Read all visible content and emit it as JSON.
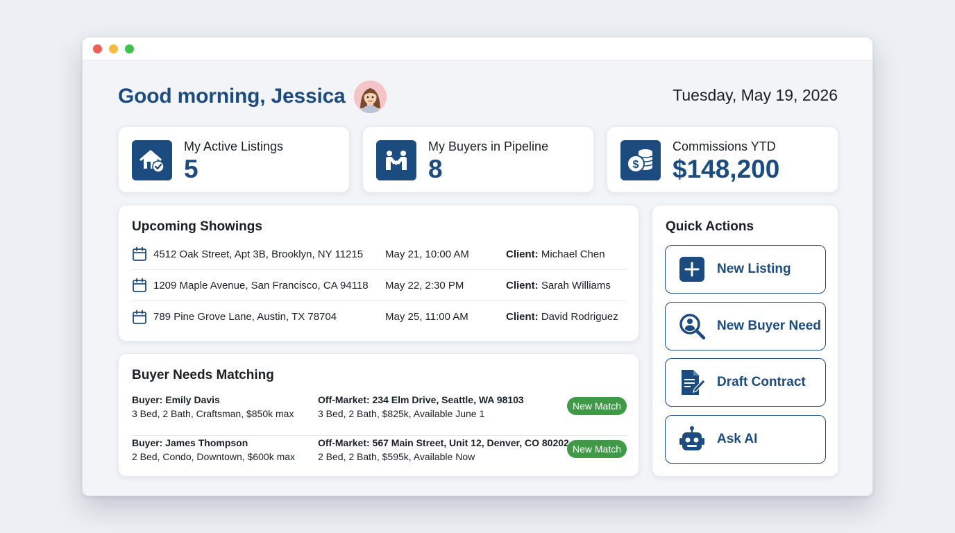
{
  "window": {
    "controls": [
      "close",
      "minimize",
      "zoom"
    ]
  },
  "header": {
    "greeting": "Good morning, Jessica",
    "date": "Tuesday, May 19, 2026"
  },
  "stats": [
    {
      "label": "My Active Listings",
      "value": "5",
      "icon": "house-check-icon"
    },
    {
      "label": "My Buyers in Pipeline",
      "value": "8",
      "icon": "handshake-icon"
    },
    {
      "label": "Commissions YTD",
      "value": "$148,200",
      "icon": "coins-icon"
    }
  ],
  "showings": {
    "title": "Upcoming Showings",
    "client_label": "Client:",
    "rows": [
      {
        "address": "4512 Oak Street, Apt 3B, Brooklyn, NY 11215",
        "when": "May 21, 10:00 AM",
        "client": "Michael Chen"
      },
      {
        "address": "1209 Maple Avenue, San Francisco, CA 94118",
        "when": "May 22, 2:30 PM",
        "client": "Sarah Williams"
      },
      {
        "address": "789 Pine Grove Lane, Austin, TX 78704",
        "when": "May 25, 11:00 AM",
        "client": "David Rodriguez"
      }
    ]
  },
  "buyer_needs": {
    "title": "Buyer Needs Matching",
    "rows": [
      {
        "buyer": "Buyer: Emily Davis",
        "buyer_detail": "3 Bed, 2 Bath, Craftsman, $850k max",
        "match": "Off-Market: 234 Elm Drive, Seattle, WA 98103",
        "match_detail": "3 Bed, 2 Bath, $825k, Available June 1",
        "badge": "New Match"
      },
      {
        "buyer": "Buyer: James Thompson",
        "buyer_detail": "2 Bed, Condo, Downtown, $600k max",
        "match": "Off-Market: 567 Main Street, Unit 12, Denver, CO 80202",
        "match_detail": "2 Bed, 2 Bath, $595k, Available Now",
        "badge": "New Match"
      }
    ]
  },
  "quick_actions": {
    "title": "Quick Actions",
    "items": [
      {
        "label": "New Listing",
        "icon": "plus-icon"
      },
      {
        "label": "New Buyer Need",
        "icon": "search-person-icon"
      },
      {
        "label": "Draft Contract",
        "icon": "document-pen-icon"
      },
      {
        "label": "Ask AI",
        "icon": "robot-icon"
      }
    ]
  },
  "colors": {
    "accent": "#1c4b80",
    "match": "#3f9a47"
  }
}
